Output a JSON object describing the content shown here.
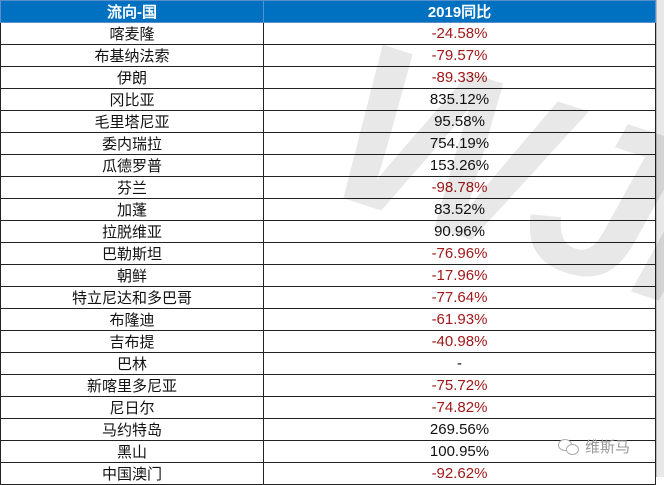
{
  "table": {
    "headers": [
      "流向-国",
      "2019同比"
    ],
    "rows": [
      [
        "喀麦隆",
        "-24.58%"
      ],
      [
        "布基纳法索",
        "-79.57%"
      ],
      [
        "伊朗",
        "-89.33%"
      ],
      [
        "冈比亚",
        "835.12%"
      ],
      [
        "毛里塔尼亚",
        "95.58%"
      ],
      [
        "委内瑞拉",
        "754.19%"
      ],
      [
        "瓜德罗普",
        "153.26%"
      ],
      [
        "芬兰",
        "-98.78%"
      ],
      [
        "加蓬",
        "83.52%"
      ],
      [
        "拉脱维亚",
        "90.96%"
      ],
      [
        "巴勒斯坦",
        "-76.96%"
      ],
      [
        "朝鲜",
        "-17.96%"
      ],
      [
        "特立尼达和多巴哥",
        "-77.64%"
      ],
      [
        "布隆迪",
        "-61.93%"
      ],
      [
        "吉布提",
        "-40.98%"
      ],
      [
        "巴林",
        "-"
      ],
      [
        "新喀里多尼亚",
        "-75.72%"
      ],
      [
        "尼日尔",
        "-74.82%"
      ],
      [
        "马约特岛",
        "269.56%"
      ],
      [
        "黑山",
        "100.95%"
      ],
      [
        "中国澳门",
        "-92.62%"
      ]
    ]
  },
  "watermark": {
    "large": "WJM",
    "brand": "维斯马",
    "icon": "wechat-icon"
  },
  "colors": {
    "header_bg": "#0070c0",
    "negative": "#a01818",
    "positive": "#111111"
  }
}
